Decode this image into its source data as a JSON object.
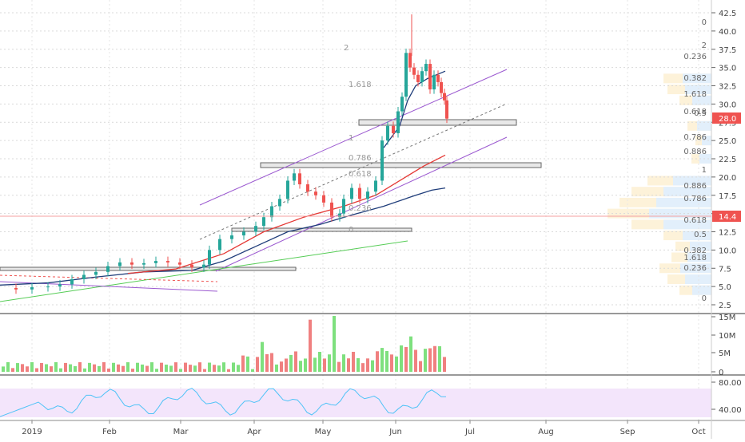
{
  "chart_data": {
    "type": "candlestick",
    "x_labels": [
      "2019",
      "Feb",
      "Mar",
      "Apr",
      "May",
      "Jun",
      "Jul",
      "Aug",
      "Sep",
      "Oct"
    ],
    "price_axis": {
      "ticks": [
        "42.5",
        "40.0",
        "37.5",
        "35.0",
        "32.5",
        "30.0",
        "27.5",
        "25.0",
        "22.5",
        "20.0",
        "17.5",
        "15.0",
        "12.5",
        "10.0",
        "7.5",
        "5.0",
        "2.5"
      ],
      "range": [
        2.5,
        42.5
      ]
    },
    "last_price": "28.0",
    "marker_price": "14.4",
    "volume_axis": {
      "ticks": [
        "15M",
        "10M",
        "5M",
        "0"
      ],
      "range": [
        0,
        15
      ]
    },
    "rsi_axis": {
      "ticks": [
        "80.00",
        "40.00"
      ],
      "range": [
        30,
        90
      ]
    },
    "fib_right_labels": [
      "0",
      "2",
      "0.236",
      "0.382",
      "1.618",
      "0.5",
      "0.618",
      "0.786",
      "0.886",
      "1",
      "0.886",
      "0.786",
      "0.618",
      "0.5",
      "0.382",
      "1.618",
      "0.236",
      "0"
    ],
    "fib_inner_labels": [
      "2",
      "1.618",
      "1",
      "0.786",
      "0.618",
      "0.236",
      "0"
    ],
    "colors": {
      "up": "#26a69a",
      "down": "#ef5350",
      "vol_up": "#7ee07e",
      "vol_down": "#f08080",
      "ema_short": "#1f3d7a",
      "ema_long": "#e53935",
      "channel": "#9b59d0",
      "trend": "#55cc55",
      "rsi": "#4fc3f7",
      "rsi_band": "#f3e5fb",
      "price_tag": "#ef5350"
    }
  }
}
